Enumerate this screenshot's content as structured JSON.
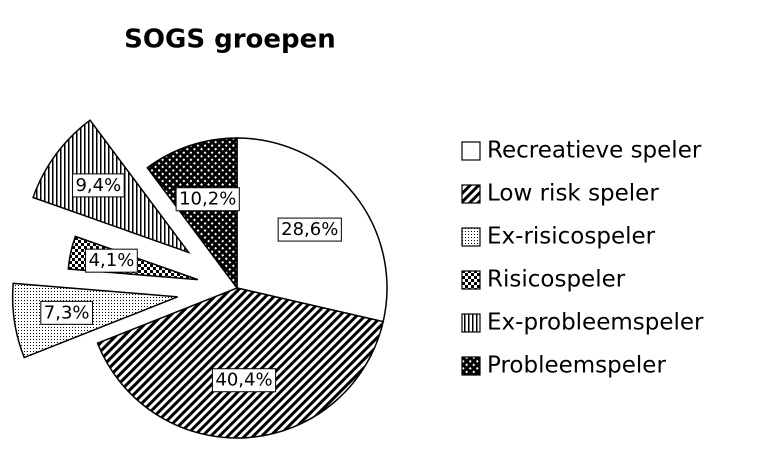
{
  "chart_data": {
    "type": "pie",
    "title": "SOGS groepen",
    "categories": [
      "Recreatieve speler",
      "Low risk speler",
      "Ex-risicospeler",
      "Risicospeler",
      "Ex-probleemspeler",
      "Probleemspeler"
    ],
    "values": [
      28.6,
      40.4,
      7.3,
      4.1,
      9.4,
      10.2
    ],
    "value_labels": [
      "28,6%",
      "40,4%",
      "7,3%",
      "4,1%",
      "9,4%",
      "10,2%"
    ],
    "patterns": [
      "none",
      "diagonal",
      "dots",
      "checker",
      "vertical",
      "crosshatch"
    ],
    "exploded": [
      false,
      false,
      true,
      true,
      true,
      false
    ],
    "legend": "right"
  }
}
